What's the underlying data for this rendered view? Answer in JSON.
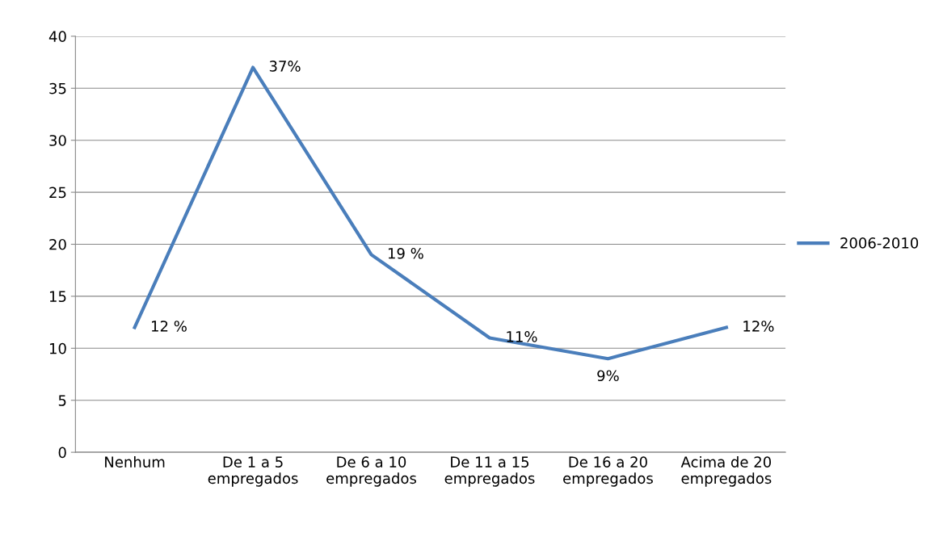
{
  "chart_data": {
    "type": "line",
    "categories": [
      "Nenhum",
      "De 1 a 5\nempregados",
      "De 6 a 10\nempregados",
      "De 11 a 15\nempregados",
      "De 16 a 20\nempregados",
      "Acima de 20\nempregados"
    ],
    "series": [
      {
        "name": "2006-2010",
        "color": "#4a7ebb",
        "values": [
          12,
          37,
          19,
          11,
          9,
          12
        ],
        "value_labels": [
          "12 %",
          "37%",
          "19 %",
          "11%",
          "9%",
          "12%"
        ]
      }
    ],
    "ylim": [
      0,
      40
    ],
    "yticks": [
      0,
      5,
      10,
      15,
      20,
      25,
      30,
      35,
      40
    ],
    "grid": "y",
    "legend": "right",
    "marker": "none",
    "line_style": "solid"
  }
}
